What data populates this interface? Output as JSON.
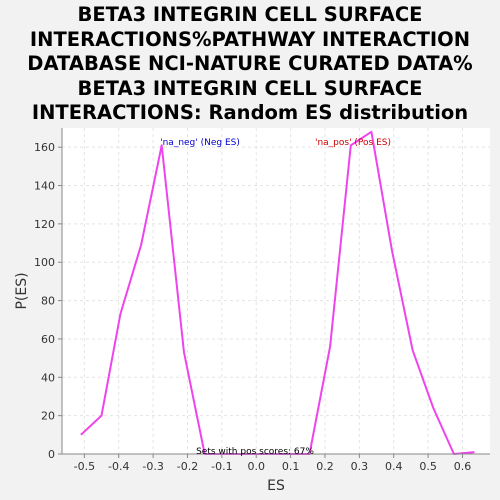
{
  "chart_data": {
    "type": "line",
    "title_lines": [
      "BETA3 INTEGRIN CELL SURFACE",
      "INTERACTIONS%PATHWAY INTERACTION",
      "DATABASE NCI-NATURE CURATED DATA%",
      "BETA3 INTEGRIN CELL SURFACE",
      "INTERACTIONS: Random ES distribution"
    ],
    "xlabel": "ES",
    "ylabel": "P(ES)",
    "xlim": [
      -0.565,
      0.68
    ],
    "ylim": [
      0,
      170
    ],
    "x_ticks": [
      -0.5,
      -0.4,
      -0.3,
      -0.2,
      -0.1,
      0.0,
      0.1,
      0.2,
      0.3,
      0.4,
      0.5,
      0.6
    ],
    "x_tick_labels": [
      "-0.5",
      "-0.4",
      "-0.3",
      "-0.2",
      "-0.1",
      "0.0",
      "0.1",
      "0.2",
      "0.3",
      "0.4",
      "0.5",
      "0.6"
    ],
    "y_ticks": [
      0,
      20,
      40,
      60,
      80,
      100,
      120,
      140,
      160
    ],
    "y_tick_labels": [
      "0",
      "20",
      "40",
      "60",
      "80",
      "100",
      "120",
      "140",
      "160"
    ],
    "grid": true,
    "series": [
      {
        "color": "#ee44ee",
        "x": [
          -0.51,
          -0.45,
          -0.395,
          -0.335,
          -0.275,
          -0.21,
          -0.15,
          -0.09,
          0.0,
          0.09,
          0.155,
          0.215,
          0.275,
          0.335,
          0.395,
          0.455,
          0.515,
          0.575,
          0.635
        ],
        "y": [
          10,
          20,
          73,
          109,
          161,
          53,
          0,
          0,
          0,
          0,
          0,
          56,
          161,
          168,
          106,
          54,
          24,
          0,
          1
        ]
      }
    ],
    "annotations": {
      "neg_label": "'na_neg' (Neg ES)",
      "pos_label": "'na_pos' (Pos ES)",
      "footer": "Sets with pos scores: 67%"
    },
    "colors": {
      "neg_label": "#0000cc",
      "pos_label": "#cc0000",
      "footer": "#000000",
      "plot_bg": "#ffffff",
      "grid": "#e4e4e4"
    }
  }
}
